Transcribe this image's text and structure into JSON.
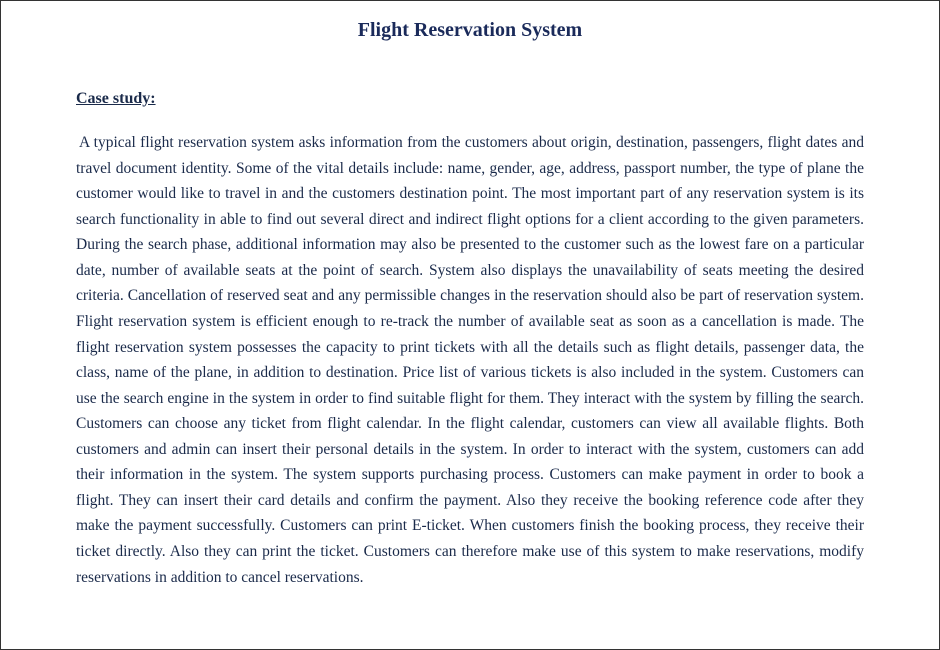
{
  "document": {
    "title": "Flight Reservation System",
    "section_heading": "Case study:",
    "body": "A typical flight reservation system asks information from the customers about origin, destination, passengers, flight dates and travel document identity. Some of the vital details include: name, gender, age, address, passport number, the type of plane the customer would like to travel in and the customers destination point. The most important part of any reservation system is its search functionality in able to find out several direct and indirect flight options for a client according to the given parameters. During the search phase, additional information may also be presented to the customer such as the lowest fare on a particular date, number of available seats at the point of search. System also displays the unavailability of seats meeting the desired criteria. Cancellation of reserved seat and any permissible changes in the reservation should also be part of reservation system. Flight reservation system is efficient enough to re-track the number of available seat as soon as a cancellation is made. The flight reservation system possesses the capacity to print tickets with all the details such as flight details, passenger data, the class, name of the plane, in addition to destination. Price list of various tickets is also included in the system. Customers can use the search engine in the system in order to find suitable flight for them. They interact with the system by filling the search. Customers can choose any ticket from flight calendar. In the flight calendar, customers can view all available flights. Both customers and admin can insert their personal details in the system. In order to interact with the system, customers can add their information in the system. The system supports purchasing process. Customers can make payment in order to book a flight. They can insert their card details and confirm the payment. Also they receive the booking reference code after they make the payment successfully. Customers can print E-ticket. When customers finish the booking process, they receive their ticket directly. Also they can print the ticket. Customers can therefore make use of this system to make reservations, modify reservations in addition to cancel reservations.",
    "colors": {
      "title_color": "#1a2a5a",
      "text_color": "#1a2a4a",
      "background": "#ffffff"
    },
    "typography": {
      "font_family": "Times New Roman",
      "title_fontsize": 20,
      "heading_fontsize": 16,
      "body_fontsize": 15.5,
      "body_line_height": 1.65,
      "body_align": "justify"
    }
  }
}
